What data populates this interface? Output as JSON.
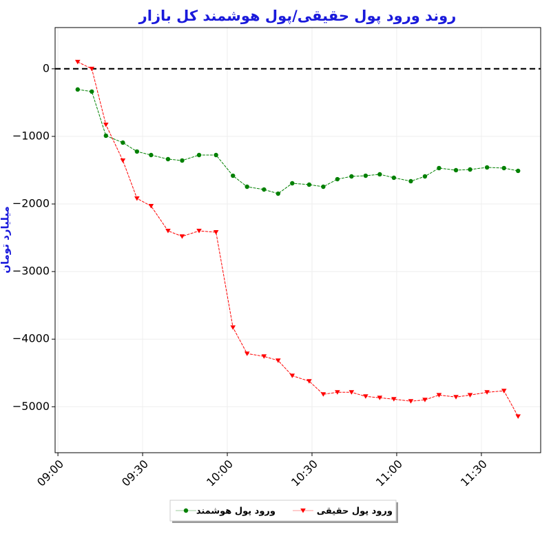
{
  "chart_data": {
    "type": "line",
    "title": "روند ورود پول حقیقی/پول هوشمند کل بازار",
    "y_label": "میلیارد تومان",
    "x": [
      "09:07",
      "09:12",
      "09:17",
      "09:23",
      "09:28",
      "09:33",
      "09:39",
      "09:44",
      "09:50",
      "09:56",
      "10:02",
      "10:07",
      "10:13",
      "10:18",
      "10:23",
      "10:29",
      "10:34",
      "10:39",
      "10:44",
      "10:49",
      "10:54",
      "10:59",
      "11:05",
      "11:10",
      "11:15",
      "11:21",
      "11:26",
      "11:32",
      "11:38",
      "11:43"
    ],
    "series": [
      {
        "name": "ورود پول هوشمند",
        "color": "#008000",
        "marker": "circle",
        "values": [
          -306,
          -337,
          -990,
          -1092,
          -1224,
          -1276,
          -1337,
          -1357,
          -1276,
          -1276,
          -1582,
          -1745,
          -1786,
          -1847,
          -1694,
          -1714,
          -1745,
          -1633,
          -1592,
          -1582,
          -1561,
          -1612,
          -1663,
          -1592,
          -1469,
          -1500,
          -1490,
          -1459,
          -1469,
          -1510
        ]
      },
      {
        "name": "ورود پول حقیقی",
        "color": "#ff0000",
        "marker": "triangle-down",
        "values": [
          102,
          0,
          -827,
          -1357,
          -1918,
          -2031,
          -2398,
          -2480,
          -2398,
          -2418,
          -3827,
          -4214,
          -4255,
          -4316,
          -4541,
          -4622,
          -4816,
          -4786,
          -4786,
          -4847,
          -4867,
          -4888,
          -4918,
          -4898,
          -4827,
          -4857,
          -4827,
          -4786,
          -4765,
          -5143
        ]
      }
    ],
    "xlim": [
      "08:59",
      "11:51"
    ],
    "xticks": [
      "09:00",
      "09:30",
      "10:00",
      "10:30",
      "11:00",
      "11:30"
    ],
    "ylim": [
      -5680,
      610
    ],
    "yticks": [
      0,
      {
        "value": -1000,
        "label": "−1000"
      },
      {
        "value": -2000,
        "label": "−2000"
      },
      {
        "value": -3000,
        "label": "−3000"
      },
      {
        "value": -4000,
        "label": "−4000"
      },
      {
        "value": -5000,
        "label": "−5000"
      }
    ],
    "reference_line": 0,
    "grid": true,
    "legend": "bottom"
  }
}
